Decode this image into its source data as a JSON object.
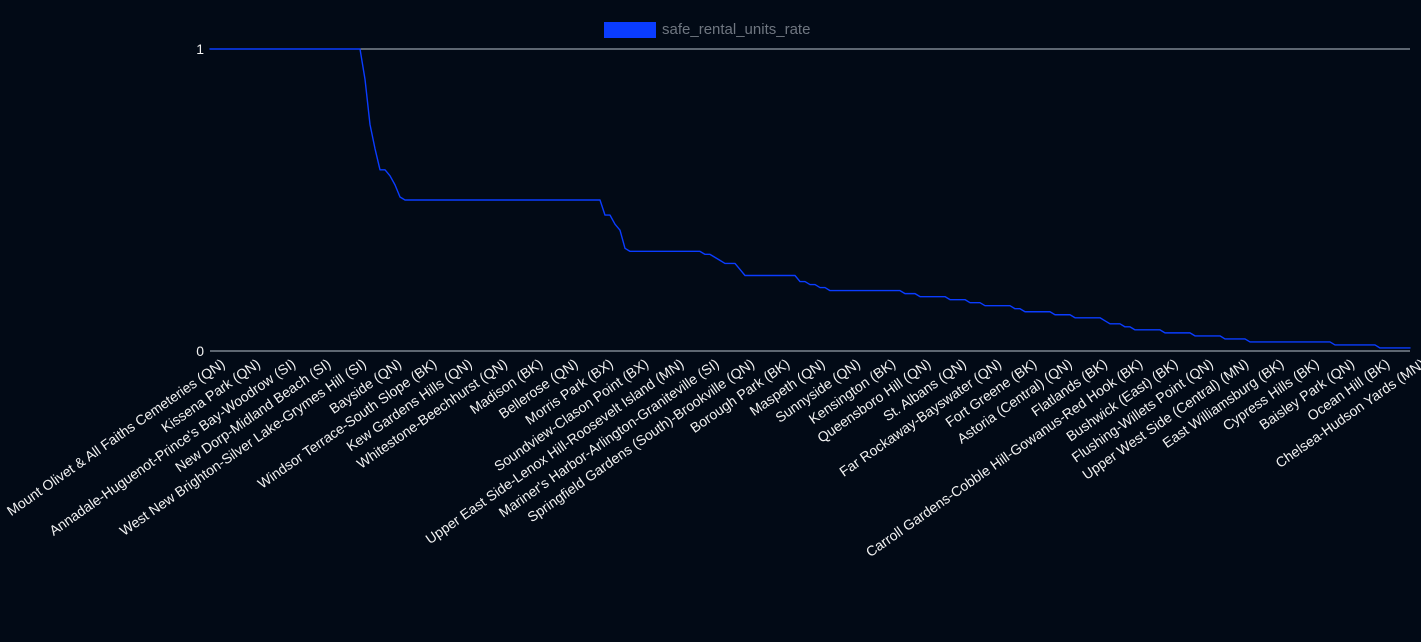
{
  "chart_data": {
    "type": "line",
    "title": "",
    "xlabel": "",
    "ylabel": "",
    "legend": {
      "placement": "top-center",
      "entries": [
        {
          "name": "safe_rental_units_rate",
          "color": "#0a3cff"
        }
      ]
    },
    "grid": {
      "horizontal": true,
      "vertical": false
    },
    "ylim": [
      0,
      1
    ],
    "yticks": [
      {
        "value": 1,
        "label": "1"
      },
      {
        "value": 0,
        "label": "0"
      }
    ],
    "x_tick_labels": [
      "Mount Olivet & All Faiths Cemeteries (QN)",
      "Kissena Park (QN)",
      "Annadale-Huguenot-Prince's Bay-Woodrow (SI)",
      "New Dorp-Midland Beach (SI)",
      "West New Brighton-Silver Lake-Grymes Hill (SI)",
      "Bayside (QN)",
      "Windsor Terrace-South Slope (BK)",
      "Kew Gardens Hills (QN)",
      "Whitestone-Beechhurst (QN)",
      "Madison (BK)",
      "Bellerose (QN)",
      "Morris Park (BX)",
      "Soundview-Clason Point (BX)",
      "Upper East Side-Lenox Hill-Roosevelt Island (MN)",
      "Mariner's Harbor-Arlington-Graniteville (SI)",
      "Springfield Gardens (South)-Brookville (QN)",
      "Borough Park (BK)",
      "Maspeth (QN)",
      "Sunnyside (QN)",
      "Kensington (BK)",
      "Queensboro Hill (QN)",
      "St. Albans (QN)",
      "Far Rockaway-Bayswater (QN)",
      "Fort Greene (BK)",
      "Astoria (Central) (QN)",
      "Flatlands (BK)",
      "Carroll Gardens-Cobble Hill-Gowanus-Red Hook (BK)",
      "Bushwick (East) (BK)",
      "Flushing-Willets Point (QN)",
      "Upper West Side (Central) (MN)",
      "East Williamsburg (BK)",
      "Cypress Hills (BK)",
      "Baisley Park (QN)",
      "Ocean Hill (BK)",
      "Chelsea-Hudson Yards (MN)"
    ],
    "series": [
      {
        "name": "safe_rental_units_rate",
        "color": "#0a3cff",
        "values": [
          1,
          1,
          1,
          1,
          1,
          1,
          1,
          1,
          1,
          1,
          1,
          1,
          1,
          1,
          1,
          1,
          1,
          1,
          1,
          1,
          1,
          1,
          1,
          1,
          1,
          1,
          1,
          1,
          1,
          1,
          1,
          0.9,
          0.75,
          0.67,
          0.6,
          0.6,
          0.58,
          0.55,
          0.51,
          0.5,
          0.5,
          0.5,
          0.5,
          0.5,
          0.5,
          0.5,
          0.5,
          0.5,
          0.5,
          0.5,
          0.5,
          0.5,
          0.5,
          0.5,
          0.5,
          0.5,
          0.5,
          0.5,
          0.5,
          0.5,
          0.5,
          0.5,
          0.5,
          0.5,
          0.5,
          0.5,
          0.5,
          0.5,
          0.5,
          0.5,
          0.5,
          0.5,
          0.5,
          0.5,
          0.5,
          0.5,
          0.5,
          0.5,
          0.5,
          0.45,
          0.45,
          0.42,
          0.4,
          0.34,
          0.33,
          0.33,
          0.33,
          0.33,
          0.33,
          0.33,
          0.33,
          0.33,
          0.33,
          0.33,
          0.33,
          0.33,
          0.33,
          0.33,
          0.33,
          0.32,
          0.32,
          0.31,
          0.3,
          0.29,
          0.29,
          0.29,
          0.27,
          0.25,
          0.25,
          0.25,
          0.25,
          0.25,
          0.25,
          0.25,
          0.25,
          0.25,
          0.25,
          0.25,
          0.23,
          0.23,
          0.22,
          0.22,
          0.21,
          0.21,
          0.2,
          0.2,
          0.2,
          0.2,
          0.2,
          0.2,
          0.2,
          0.2,
          0.2,
          0.2,
          0.2,
          0.2,
          0.2,
          0.2,
          0.2,
          0.19,
          0.19,
          0.19,
          0.18,
          0.18,
          0.18,
          0.18,
          0.18,
          0.18,
          0.17,
          0.17,
          0.17,
          0.17,
          0.16,
          0.16,
          0.16,
          0.15,
          0.15,
          0.15,
          0.15,
          0.15,
          0.15,
          0.14,
          0.14,
          0.13,
          0.13,
          0.13,
          0.13,
          0.13,
          0.13,
          0.12,
          0.12,
          0.12,
          0.12,
          0.11,
          0.11,
          0.11,
          0.11,
          0.11,
          0.11,
          0.1,
          0.09,
          0.09,
          0.09,
          0.08,
          0.08,
          0.07,
          0.07,
          0.07,
          0.07,
          0.07,
          0.07,
          0.06,
          0.06,
          0.06,
          0.06,
          0.06,
          0.06,
          0.05,
          0.05,
          0.05,
          0.05,
          0.05,
          0.05,
          0.04,
          0.04,
          0.04,
          0.04,
          0.04,
          0.03,
          0.03,
          0.03,
          0.03,
          0.03,
          0.03,
          0.03,
          0.03,
          0.03,
          0.03,
          0.03,
          0.03,
          0.03,
          0.03,
          0.03,
          0.03,
          0.03,
          0.02,
          0.02,
          0.02,
          0.02,
          0.02,
          0.02,
          0.02,
          0.02,
          0.02,
          0.01,
          0.01,
          0.01,
          0.01,
          0.01,
          0.01,
          0.01
        ]
      }
    ]
  }
}
